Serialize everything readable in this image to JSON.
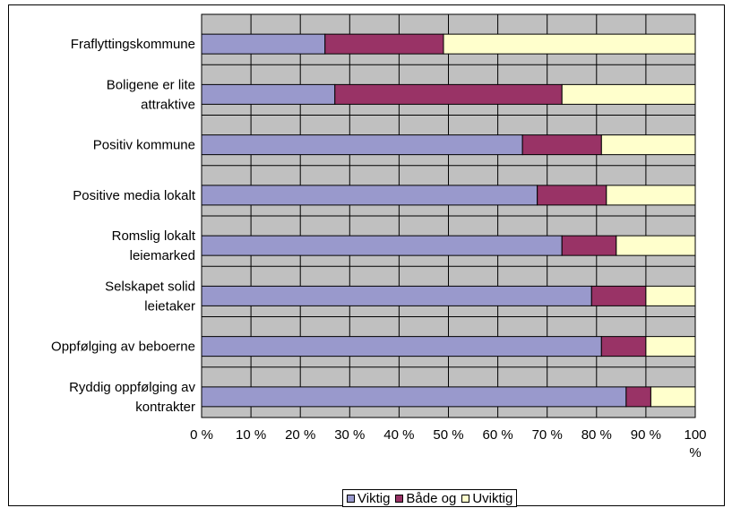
{
  "chart_data": {
    "type": "bar",
    "orientation": "horizontal",
    "stacked": "percent",
    "categories": [
      [
        "Fraflyttingskommune"
      ],
      [
        "Boligene er lite",
        "attraktive"
      ],
      [
        "Positiv kommune"
      ],
      [
        "Positive media lokalt"
      ],
      [
        "Romslig lokalt",
        "leiemarked"
      ],
      [
        "Selskapet solid",
        "leietaker"
      ],
      [
        "Oppfølging av beboerne"
      ],
      [
        "Ryddig oppfølging av",
        "kontrakter"
      ]
    ],
    "series": [
      {
        "name": "Viktig",
        "color": "#9999cc",
        "values": [
          25,
          27,
          65,
          68,
          73,
          79,
          81,
          86
        ]
      },
      {
        "name": "Både og",
        "color": "#993366",
        "values": [
          24,
          46,
          16,
          14,
          11,
          11,
          9,
          5
        ]
      },
      {
        "name": "Uviktig",
        "color": "#ffffcc",
        "values": [
          51,
          27,
          19,
          18,
          16,
          10,
          10,
          9
        ]
      }
    ],
    "x_ticks": [
      "0 %",
      "10 %",
      "20 %",
      "30 %",
      "40 %",
      "50 %",
      "60 %",
      "70 %",
      "80 %",
      "90 %"
    ],
    "x_last_tick": [
      "100",
      "%"
    ],
    "xlim": [
      0,
      100
    ],
    "plot_background": "#c0c0c0",
    "gridlines": true,
    "legend_position": "bottom"
  }
}
